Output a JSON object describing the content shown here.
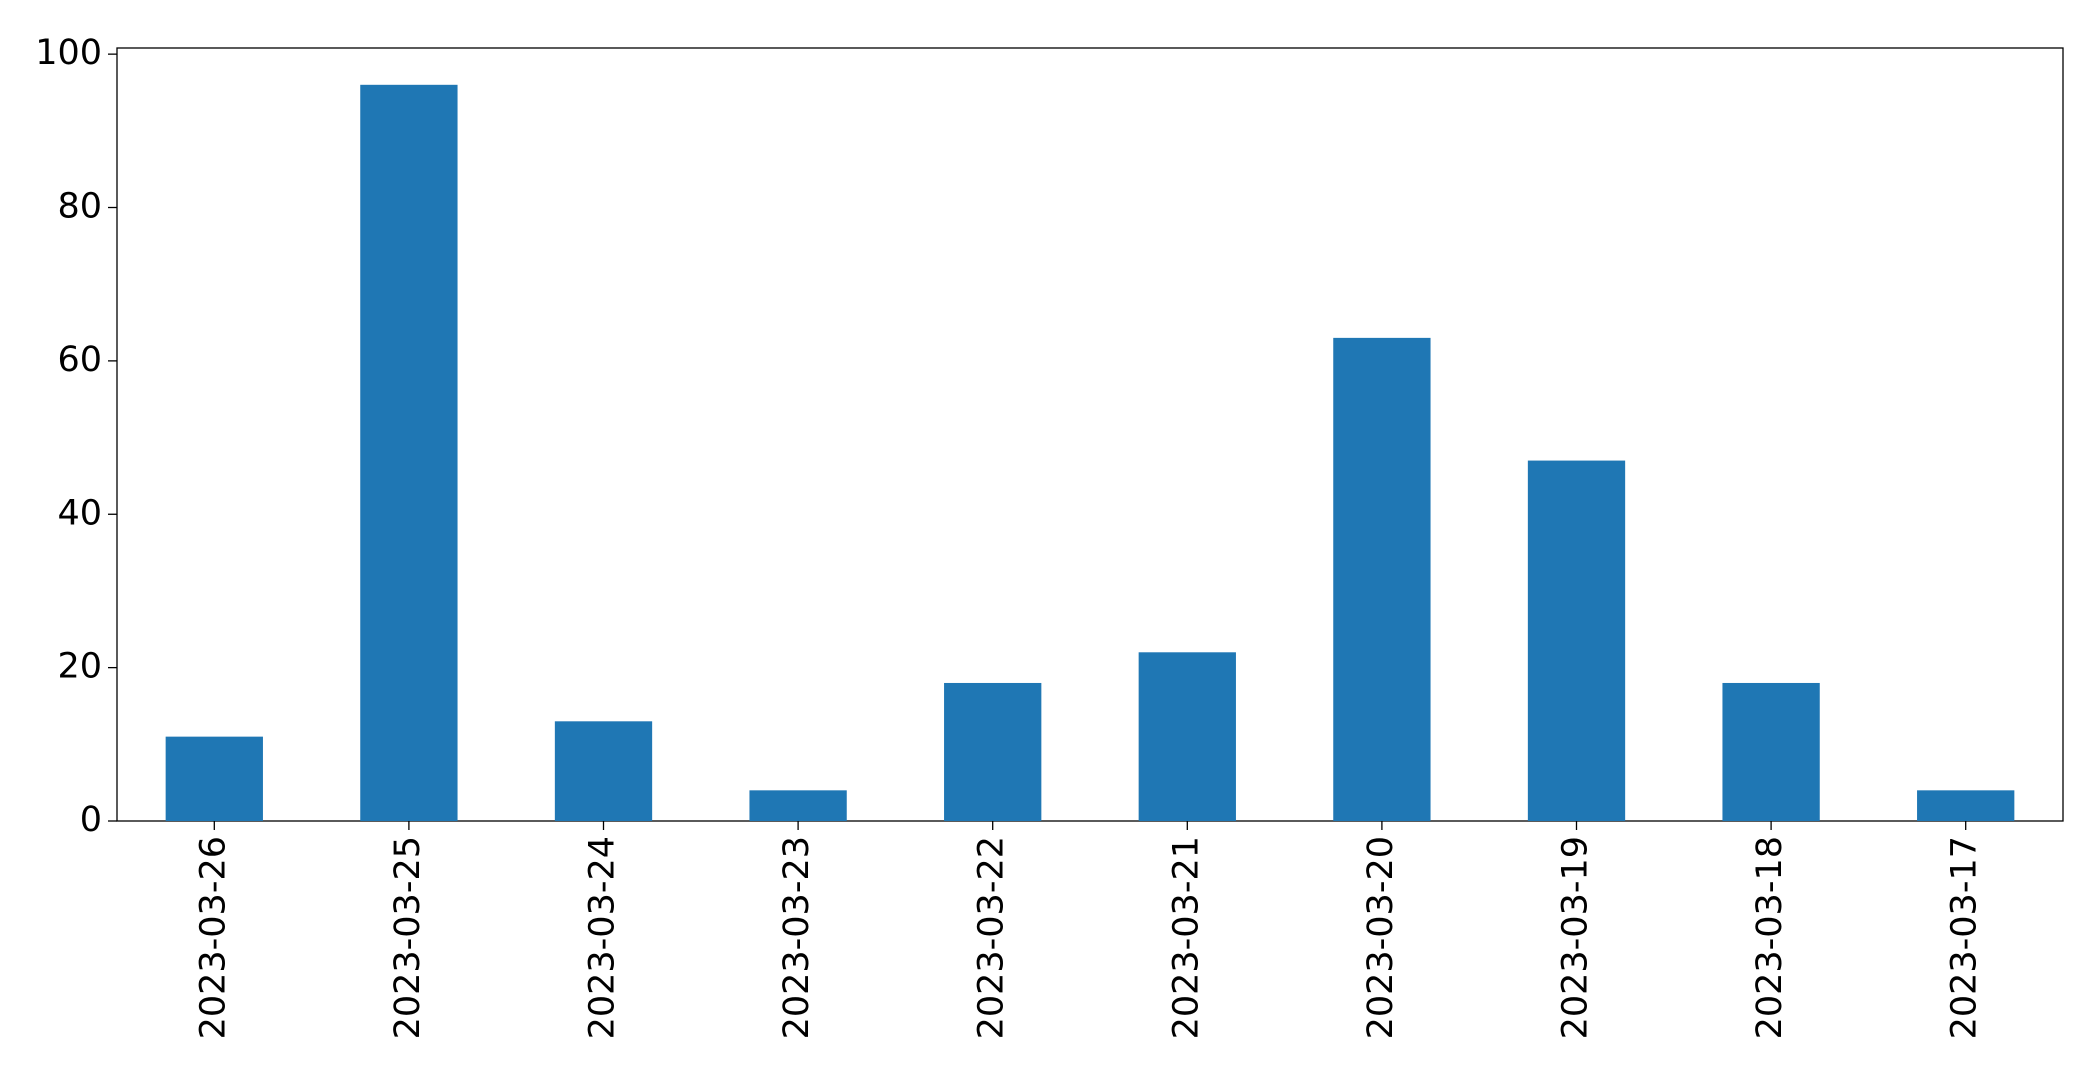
{
  "chart_data": {
    "type": "bar",
    "categories": [
      "2023-03-26",
      "2023-03-25",
      "2023-03-24",
      "2023-03-23",
      "2023-03-22",
      "2023-03-21",
      "2023-03-20",
      "2023-03-19",
      "2023-03-18",
      "2023-03-17"
    ],
    "values": [
      11,
      96,
      13,
      4,
      18,
      22,
      63,
      47,
      18,
      4
    ],
    "color": "#1f77b4",
    "ylim": [
      0,
      100.8
    ],
    "yticks": [
      0,
      20,
      40,
      60,
      80,
      100
    ],
    "grid": false
  }
}
